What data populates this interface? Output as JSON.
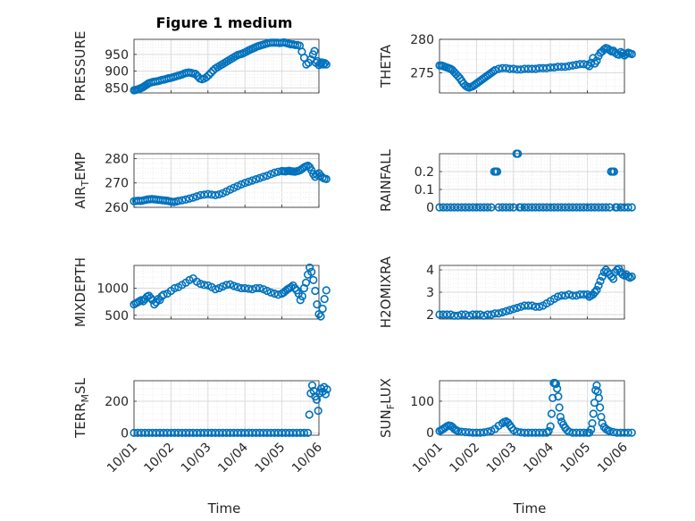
{
  "figure_title": "Figure 1 medium",
  "marker_color": "#0072BD",
  "chart_data": [
    {
      "type": "scatter",
      "ylabel": "PRESSURE",
      "yticks": [
        850,
        900,
        950
      ],
      "ylim": [
        835,
        995
      ],
      "xlim": [
        0,
        5
      ],
      "x": [
        0.0,
        0.04,
        0.08,
        0.12,
        0.16,
        0.2,
        0.24,
        0.28,
        0.32,
        0.36,
        0.4,
        0.46,
        0.52,
        0.58,
        0.64,
        0.7,
        0.76,
        0.82,
        0.88,
        0.94,
        1.0,
        1.06,
        1.12,
        1.18,
        1.24,
        1.3,
        1.36,
        1.42,
        1.48,
        1.54,
        1.6,
        1.66,
        1.72,
        1.78,
        1.84,
        1.9,
        1.96,
        2.02,
        2.08,
        2.14,
        2.2,
        2.26,
        2.32,
        2.38,
        2.44,
        2.5,
        2.56,
        2.62,
        2.68,
        2.74,
        2.8,
        2.86,
        2.92,
        2.98,
        3.04,
        3.1,
        3.16,
        3.22,
        3.28,
        3.34,
        3.4,
        3.46,
        3.52,
        3.58,
        3.64,
        3.7,
        3.76,
        3.82,
        3.88,
        3.94,
        4.0,
        4.06,
        4.12,
        4.18,
        4.24,
        4.3,
        4.36,
        4.42,
        4.48,
        4.54,
        4.6,
        4.66,
        4.72,
        4.78,
        4.84,
        4.88,
        4.92,
        4.96,
        5.0,
        5.04,
        5.08,
        5.12,
        5.16,
        5.2
      ],
      "y": [
        843,
        844,
        845,
        846,
        848,
        850,
        852,
        855,
        858,
        861,
        864,
        866,
        868,
        869,
        870,
        872,
        874,
        875,
        877,
        879,
        880,
        882,
        884,
        886,
        888,
        890,
        893,
        895,
        896,
        895,
        893,
        892,
        885,
        878,
        876,
        878,
        882,
        888,
        895,
        902,
        908,
        912,
        916,
        920,
        924,
        928,
        932,
        936,
        940,
        944,
        948,
        950,
        952,
        955,
        958,
        962,
        965,
        968,
        971,
        974,
        976,
        978,
        980,
        982,
        984,
        985,
        985,
        985,
        985,
        984,
        985,
        986,
        984,
        982,
        980,
        980,
        978,
        978,
        976,
        958,
        940,
        920,
        925,
        935,
        950,
        960,
        925,
        930,
        918,
        922,
        926,
        920,
        924,
        920
      ]
    },
    {
      "type": "scatter",
      "ylabel": "THETA",
      "yticks": [
        275,
        280
      ],
      "ylim": [
        272,
        280
      ],
      "xlim": [
        0,
        5
      ],
      "x": [
        0.0,
        0.05,
        0.1,
        0.15,
        0.2,
        0.25,
        0.3,
        0.35,
        0.4,
        0.45,
        0.5,
        0.55,
        0.6,
        0.65,
        0.7,
        0.75,
        0.8,
        0.85,
        0.9,
        0.95,
        1.0,
        1.05,
        1.1,
        1.15,
        1.2,
        1.25,
        1.3,
        1.35,
        1.4,
        1.45,
        1.5,
        1.6,
        1.7,
        1.8,
        1.9,
        2.0,
        2.1,
        2.2,
        2.3,
        2.4,
        2.5,
        2.6,
        2.7,
        2.8,
        2.9,
        3.0,
        3.1,
        3.2,
        3.3,
        3.4,
        3.5,
        3.6,
        3.7,
        3.8,
        3.9,
        4.0,
        4.05,
        4.1,
        4.15,
        4.2,
        4.25,
        4.3,
        4.35,
        4.4,
        4.45,
        4.5,
        4.55,
        4.6,
        4.65,
        4.7,
        4.75,
        4.8,
        4.85,
        4.9,
        4.95,
        5.0,
        5.05,
        5.1,
        5.15,
        5.2
      ],
      "y": [
        276.1,
        276.1,
        276.0,
        275.9,
        275.8,
        275.7,
        275.6,
        275.4,
        275.1,
        274.8,
        274.5,
        274.2,
        273.8,
        273.4,
        273.1,
        272.9,
        272.8,
        272.9,
        273.0,
        273.2,
        273.4,
        273.6,
        273.8,
        274.0,
        274.2,
        274.4,
        274.6,
        274.8,
        275.0,
        275.2,
        275.4,
        275.6,
        275.7,
        275.7,
        275.6,
        275.6,
        275.5,
        275.5,
        275.6,
        275.6,
        275.6,
        275.6,
        275.7,
        275.7,
        275.7,
        275.8,
        275.8,
        275.9,
        275.9,
        275.9,
        276.0,
        276.1,
        276.2,
        276.3,
        276.3,
        276.2,
        276.0,
        276.5,
        277.2,
        276.4,
        276.8,
        277.5,
        278.0,
        278.2,
        278.5,
        278.7,
        278.6,
        278.4,
        278.2,
        278.3,
        278.0,
        277.8,
        277.7,
        278.1,
        277.9,
        277.6,
        277.8,
        278.0,
        277.9,
        277.8
      ]
    },
    {
      "type": "scatter",
      "ylabel": "AIR_TEMP",
      "ylabel_main": "AIR",
      "ylabel_sub": "T",
      "ylabel_rest": "EMP",
      "yticks": [
        260,
        270,
        280
      ],
      "ylim": [
        260,
        282
      ],
      "xlim": [
        0,
        5
      ],
      "x": [
        0.0,
        0.06,
        0.12,
        0.18,
        0.24,
        0.3,
        0.36,
        0.42,
        0.48,
        0.54,
        0.6,
        0.66,
        0.72,
        0.78,
        0.84,
        0.9,
        0.96,
        1.02,
        1.08,
        1.14,
        1.2,
        1.3,
        1.4,
        1.5,
        1.6,
        1.7,
        1.8,
        1.9,
        2.0,
        2.1,
        2.2,
        2.3,
        2.4,
        2.5,
        2.6,
        2.7,
        2.8,
        2.9,
        3.0,
        3.1,
        3.2,
        3.3,
        3.4,
        3.5,
        3.6,
        3.7,
        3.8,
        3.9,
        4.0,
        4.05,
        4.1,
        4.15,
        4.2,
        4.25,
        4.3,
        4.35,
        4.4,
        4.45,
        4.5,
        4.55,
        4.6,
        4.65,
        4.7,
        4.75,
        4.8,
        4.85,
        4.9,
        4.95,
        5.0,
        5.05,
        5.1,
        5.15,
        5.2
      ],
      "y": [
        262.5,
        262.6,
        262.7,
        262.6,
        262.8,
        263.0,
        263.2,
        263.3,
        263.4,
        263.3,
        263.2,
        263.1,
        263.0,
        262.9,
        262.8,
        262.7,
        262.5,
        262.3,
        262.2,
        262.4,
        262.6,
        262.9,
        263.2,
        263.6,
        264.0,
        264.5,
        265.0,
        265.2,
        265.4,
        265.2,
        265.0,
        265.3,
        265.8,
        266.5,
        267.3,
        268.0,
        268.7,
        269.4,
        270.0,
        270.5,
        271.0,
        271.5,
        272.0,
        272.5,
        273.0,
        273.6,
        274.2,
        274.6,
        274.9,
        274.8,
        274.7,
        274.9,
        275.0,
        274.8,
        274.7,
        274.6,
        274.8,
        275.0,
        275.3,
        275.8,
        276.4,
        276.8,
        277.1,
        276.5,
        275.2,
        273.6,
        272.5,
        273.4,
        274.0,
        273.0,
        272.2,
        271.8,
        271.6
      ]
    },
    {
      "type": "scatter",
      "ylabel": "RAINFALL",
      "yticks": [
        0,
        0.1,
        0.2
      ],
      "ylim": [
        0,
        0.3
      ],
      "xlim": [
        0,
        5
      ],
      "x": [
        0.0,
        0.1,
        0.2,
        0.3,
        0.4,
        0.5,
        0.6,
        0.7,
        0.8,
        0.9,
        1.0,
        1.1,
        1.2,
        1.3,
        1.4,
        1.48,
        1.52,
        1.56,
        1.6,
        1.7,
        1.8,
        1.9,
        2.0,
        2.08,
        2.12,
        2.16,
        2.2,
        2.3,
        2.4,
        2.5,
        2.6,
        2.7,
        2.8,
        2.9,
        3.0,
        3.1,
        3.2,
        3.3,
        3.4,
        3.5,
        3.6,
        3.7,
        3.8,
        3.9,
        4.0,
        4.1,
        4.2,
        4.3,
        4.4,
        4.5,
        4.6,
        4.64,
        4.68,
        4.72,
        4.76,
        4.8,
        4.9,
        5.0,
        5.1,
        5.2
      ],
      "y": [
        0,
        0,
        0,
        0,
        0,
        0,
        0,
        0,
        0,
        0,
        0,
        0,
        0,
        0,
        0,
        0.2,
        0.2,
        0.2,
        0,
        0,
        0,
        0,
        0,
        0.3,
        0.3,
        0,
        0,
        0,
        0,
        0,
        0,
        0,
        0,
        0,
        0,
        0,
        0,
        0,
        0,
        0,
        0,
        0,
        0,
        0,
        0,
        0,
        0,
        0,
        0,
        0,
        0,
        0.2,
        0.2,
        0.2,
        0,
        0,
        0,
        0,
        0,
        0
      ]
    },
    {
      "type": "scatter",
      "ylabel": "MIXDEPTH",
      "yticks": [
        500,
        1000
      ],
      "ylim": [
        430,
        1420
      ],
      "xlim": [
        0,
        5
      ],
      "x": [
        0.0,
        0.05,
        0.1,
        0.15,
        0.2,
        0.25,
        0.3,
        0.35,
        0.4,
        0.45,
        0.5,
        0.55,
        0.6,
        0.65,
        0.7,
        0.75,
        0.8,
        0.9,
        1.0,
        1.1,
        1.2,
        1.3,
        1.4,
        1.5,
        1.6,
        1.7,
        1.8,
        1.9,
        2.0,
        2.1,
        2.2,
        2.3,
        2.4,
        2.5,
        2.6,
        2.7,
        2.8,
        2.9,
        3.0,
        3.1,
        3.2,
        3.3,
        3.4,
        3.5,
        3.6,
        3.7,
        3.8,
        3.9,
        4.0,
        4.05,
        4.1,
        4.15,
        4.2,
        4.25,
        4.3,
        4.35,
        4.4,
        4.45,
        4.5,
        4.55,
        4.6,
        4.65,
        4.7,
        4.75,
        4.8,
        4.85,
        4.9,
        4.95,
        5.0,
        5.05,
        5.1,
        5.15,
        5.2
      ],
      "y": [
        700,
        720,
        740,
        760,
        780,
        760,
        800,
        840,
        860,
        820,
        780,
        700,
        740,
        800,
        780,
        850,
        880,
        900,
        950,
        1000,
        1020,
        1060,
        1100,
        1150,
        1180,
        1120,
        1080,
        1060,
        1050,
        1020,
        980,
        1000,
        1030,
        1060,
        1070,
        1040,
        1020,
        1000,
        1000,
        990,
        980,
        1000,
        1000,
        980,
        950,
        920,
        900,
        880,
        900,
        920,
        950,
        980,
        1000,
        1020,
        1050,
        1000,
        960,
        900,
        780,
        850,
        1000,
        1100,
        1250,
        1380,
        1300,
        1150,
        950,
        700,
        520,
        480,
        620,
        800,
        960
      ]
    },
    {
      "type": "scatter",
      "ylabel": "H2OMIXRA",
      "yticks": [
        2,
        3,
        4
      ],
      "ylim": [
        1.8,
        4.2
      ],
      "xlim": [
        0,
        5
      ],
      "x": [
        0.0,
        0.1,
        0.2,
        0.3,
        0.4,
        0.5,
        0.6,
        0.7,
        0.8,
        0.9,
        1.0,
        1.1,
        1.2,
        1.3,
        1.4,
        1.5,
        1.6,
        1.7,
        1.8,
        1.9,
        2.0,
        2.1,
        2.2,
        2.3,
        2.4,
        2.5,
        2.6,
        2.7,
        2.8,
        2.9,
        3.0,
        3.1,
        3.2,
        3.3,
        3.4,
        3.5,
        3.6,
        3.7,
        3.8,
        3.9,
        4.0,
        4.05,
        4.1,
        4.15,
        4.2,
        4.25,
        4.3,
        4.35,
        4.4,
        4.45,
        4.5,
        4.55,
        4.6,
        4.65,
        4.7,
        4.75,
        4.8,
        4.85,
        4.9,
        4.95,
        5.0,
        5.05,
        5.1,
        5.15,
        5.2
      ],
      "y": [
        2.0,
        2.0,
        2.0,
        2.0,
        1.95,
        1.95,
        2.0,
        2.0,
        1.95,
        2.0,
        2.0,
        2.0,
        1.95,
        2.0,
        2.0,
        2.05,
        2.05,
        2.1,
        2.15,
        2.2,
        2.25,
        2.3,
        2.35,
        2.4,
        2.4,
        2.4,
        2.35,
        2.35,
        2.4,
        2.5,
        2.6,
        2.7,
        2.8,
        2.85,
        2.85,
        2.9,
        2.85,
        2.85,
        2.9,
        2.9,
        2.9,
        2.8,
        2.85,
        2.9,
        3.0,
        3.1,
        3.3,
        3.5,
        3.7,
        3.9,
        4.0,
        3.9,
        3.8,
        3.7,
        3.6,
        3.9,
        4.0,
        4.05,
        3.9,
        3.8,
        3.75,
        3.8,
        3.7,
        3.65,
        3.7
      ]
    },
    {
      "type": "scatter",
      "ylabel": "TERR_MSL",
      "ylabel_main": "TERR",
      "ylabel_sub": "M",
      "ylabel_rest": "SL",
      "yticks": [
        0,
        200
      ],
      "ylim": [
        -15,
        330
      ],
      "xlim": [
        0,
        5
      ],
      "x": [
        0.0,
        0.1,
        0.2,
        0.3,
        0.4,
        0.5,
        0.6,
        0.7,
        0.8,
        0.9,
        1.0,
        1.1,
        1.2,
        1.3,
        1.4,
        1.5,
        1.6,
        1.7,
        1.8,
        1.9,
        2.0,
        2.1,
        2.2,
        2.3,
        2.4,
        2.5,
        2.6,
        2.7,
        2.8,
        2.9,
        3.0,
        3.1,
        3.2,
        3.3,
        3.4,
        3.5,
        3.6,
        3.7,
        3.8,
        3.9,
        4.0,
        4.1,
        4.2,
        4.3,
        4.4,
        4.5,
        4.6,
        4.7,
        4.74,
        4.78,
        4.82,
        4.86,
        4.9,
        4.94,
        4.98,
        5.02,
        5.06,
        5.1,
        5.14,
        5.18,
        5.22
      ],
      "y": [
        0,
        0,
        0,
        0,
        0,
        0,
        0,
        0,
        0,
        0,
        0,
        0,
        0,
        0,
        0,
        0,
        0,
        0,
        0,
        0,
        0,
        0,
        0,
        0,
        0,
        0,
        0,
        0,
        0,
        0,
        0,
        0,
        0,
        0,
        0,
        0,
        0,
        0,
        0,
        0,
        0,
        0,
        0,
        0,
        0,
        0,
        0,
        0,
        115,
        250,
        300,
        265,
        230,
        210,
        140,
        250,
        280,
        260,
        290,
        245,
        275
      ]
    },
    {
      "type": "scatter",
      "ylabel": "SUN_FLUX",
      "ylabel_main": "SUN",
      "ylabel_sub": "F",
      "ylabel_rest": "LUX",
      "yticks": [
        0,
        100
      ],
      "ylim": [
        -8,
        165
      ],
      "xlim": [
        0,
        5
      ],
      "x": [
        0.0,
        0.05,
        0.1,
        0.15,
        0.2,
        0.25,
        0.3,
        0.35,
        0.4,
        0.45,
        0.5,
        0.6,
        0.7,
        0.8,
        0.9,
        1.0,
        1.1,
        1.2,
        1.3,
        1.4,
        1.5,
        1.6,
        1.7,
        1.75,
        1.8,
        1.85,
        1.9,
        1.95,
        2.0,
        2.1,
        2.2,
        2.3,
        2.4,
        2.5,
        2.6,
        2.7,
        2.8,
        2.9,
        2.95,
        3.0,
        3.03,
        3.06,
        3.09,
        3.12,
        3.15,
        3.18,
        3.21,
        3.24,
        3.27,
        3.3,
        3.35,
        3.4,
        3.45,
        3.5,
        3.6,
        3.7,
        3.8,
        3.9,
        4.0,
        4.05,
        4.1,
        4.13,
        4.16,
        4.19,
        4.22,
        4.25,
        4.28,
        4.31,
        4.34,
        4.37,
        4.4,
        4.45,
        4.5,
        4.55,
        4.6,
        4.7,
        4.8,
        4.9,
        5.0,
        5.1,
        5.2
      ],
      "y": [
        5,
        8,
        12,
        16,
        20,
        23,
        22,
        18,
        12,
        8,
        5,
        3,
        2,
        1,
        0,
        0,
        0,
        1,
        3,
        6,
        12,
        22,
        30,
        34,
        36,
        32,
        24,
        16,
        8,
        3,
        1,
        0,
        0,
        0,
        0,
        0,
        0,
        0,
        5,
        20,
        60,
        110,
        158,
        158,
        155,
        140,
        115,
        80,
        50,
        35,
        25,
        15,
        8,
        3,
        0,
        0,
        0,
        0,
        0,
        0,
        10,
        30,
        60,
        95,
        135,
        150,
        130,
        110,
        80,
        50,
        30,
        18,
        12,
        8,
        5,
        2,
        0,
        0,
        0,
        0,
        0
      ]
    }
  ],
  "x_axis": {
    "tick_labels": [
      "10/01",
      "10/02",
      "10/03",
      "10/04",
      "10/05",
      "10/06"
    ],
    "xlabel": "Time"
  }
}
